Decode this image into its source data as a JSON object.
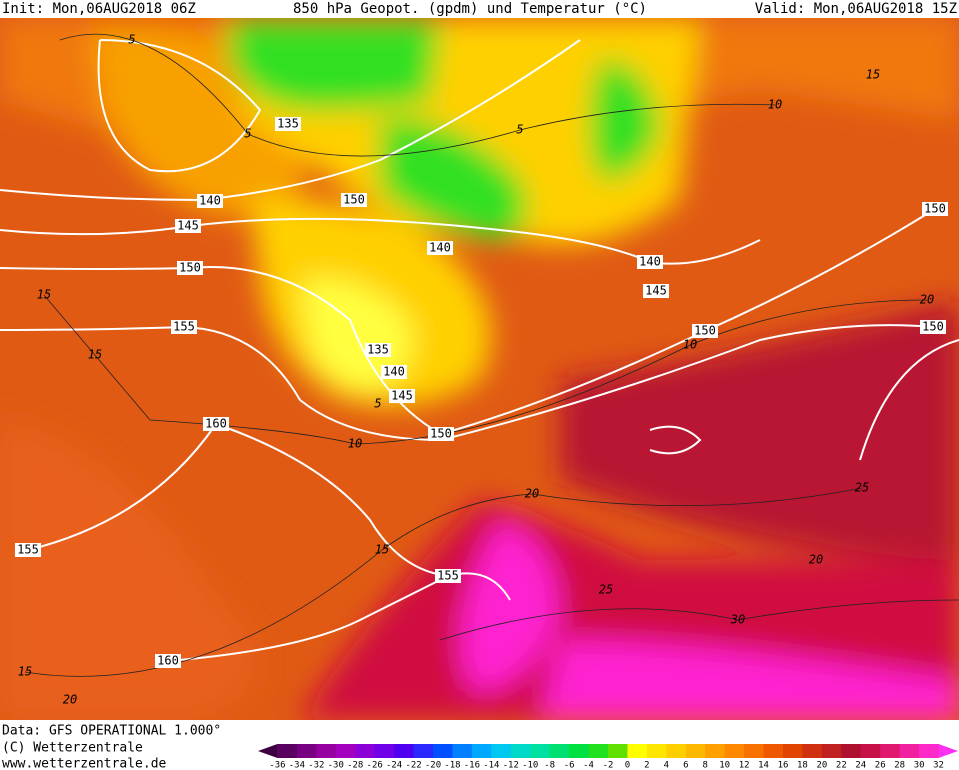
{
  "header": {
    "init": "Init: Mon,06AUG2018 06Z",
    "title": "850 hPa Geopot. (gpdm) und Temperatur (°C)",
    "valid": "Valid: Mon,06AUG2018 15Z"
  },
  "footer": {
    "data": "Data: GFS OPERATIONAL 1.000°",
    "copyright": "(C) Wetterzentrale",
    "url": "www.wetterzentrale.de"
  },
  "map": {
    "geopotential_labels": [
      135,
      140,
      145,
      150,
      155,
      160,
      155,
      160,
      150,
      140,
      135,
      140,
      145,
      150,
      155,
      140,
      145,
      150,
      150,
      150
    ],
    "temperature_labels": [
      5,
      5,
      5,
      10,
      15,
      15,
      15,
      10,
      15,
      20,
      25,
      30,
      20,
      20,
      25,
      15,
      20,
      10,
      5
    ]
  },
  "colorbar": {
    "ticks": [
      -36,
      -34,
      -32,
      -30,
      -28,
      -26,
      -24,
      -22,
      -20,
      -18,
      -16,
      -14,
      -12,
      -10,
      -8,
      -6,
      -4,
      -2,
      0,
      2,
      4,
      6,
      8,
      10,
      12,
      14,
      16,
      18,
      20,
      22,
      24,
      26,
      28,
      30,
      32
    ],
    "colors": [
      "#3c0040",
      "#5a0060",
      "#780080",
      "#9600a0",
      "#a400c0",
      "#8c00d8",
      "#7000e8",
      "#5000f0",
      "#2828ff",
      "#0050ff",
      "#0080ff",
      "#00a8ff",
      "#00c8f0",
      "#00d8c8",
      "#00e0a0",
      "#00e070",
      "#00e040",
      "#20e020",
      "#60e000",
      "#ffff00",
      "#ffe600",
      "#ffd000",
      "#ffb800",
      "#ffa000",
      "#ff8800",
      "#f87000",
      "#f05800",
      "#e04400",
      "#d03010",
      "#c02020",
      "#b01030",
      "#c81048",
      "#e01870",
      "#f020a0",
      "#ff28c8",
      "#ff30f0"
    ]
  }
}
